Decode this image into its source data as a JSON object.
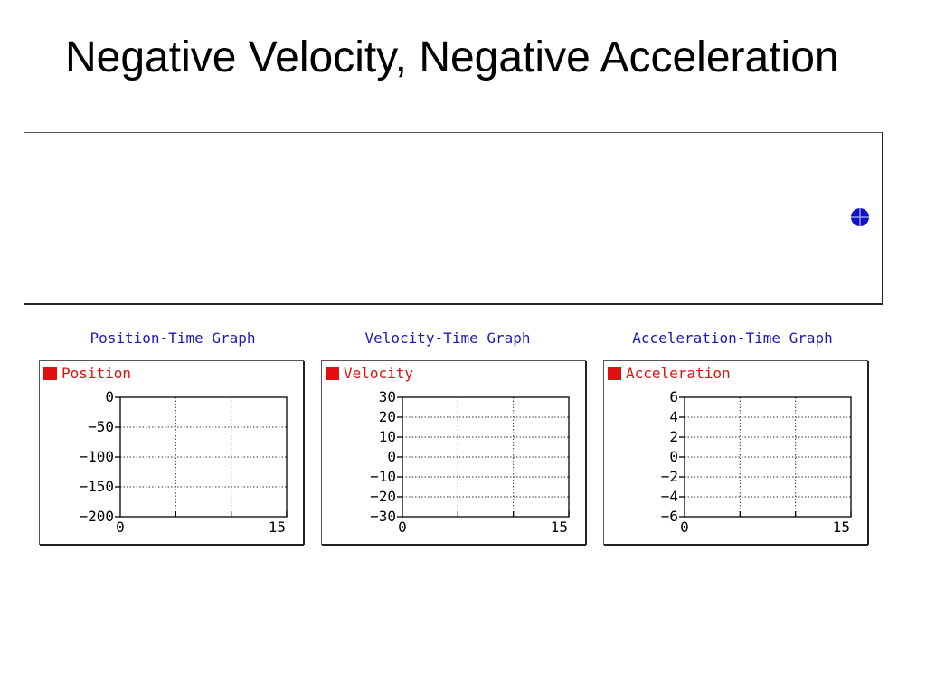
{
  "slide": {
    "title": "Negative Velocity, Negative Acceleration"
  },
  "colors": {
    "title_blue": "#1a1ab8",
    "legend_red": "#e01010",
    "object_blue": "#1010c8"
  },
  "chart_data": [
    {
      "type": "line",
      "title": "Position-Time Graph",
      "legend": "Position",
      "xlim": [
        0,
        15
      ],
      "ylim": [
        -200,
        0
      ],
      "x_ticks": [
        0,
        15
      ],
      "y_ticks": [
        0,
        -50,
        -100,
        -150,
        -200
      ],
      "grid": true,
      "series": [
        {
          "name": "Position",
          "x": [],
          "y": []
        }
      ]
    },
    {
      "type": "line",
      "title": "Velocity-Time Graph",
      "legend": "Velocity",
      "xlim": [
        0,
        15
      ],
      "ylim": [
        -30,
        30
      ],
      "x_ticks": [
        0,
        15
      ],
      "y_ticks": [
        30,
        20,
        10,
        0,
        -10,
        -20,
        -30
      ],
      "grid": true,
      "series": [
        {
          "name": "Velocity",
          "x": [],
          "y": []
        }
      ]
    },
    {
      "type": "line",
      "title": "Acceleration-Time Graph",
      "legend": "Acceleration",
      "xlim": [
        0,
        15
      ],
      "ylim": [
        -6,
        6
      ],
      "x_ticks": [
        0,
        15
      ],
      "y_ticks": [
        6,
        4,
        2,
        0,
        -2,
        -4,
        -6
      ],
      "grid": true,
      "series": [
        {
          "name": "Acceleration",
          "x": [],
          "y": []
        }
      ]
    }
  ]
}
